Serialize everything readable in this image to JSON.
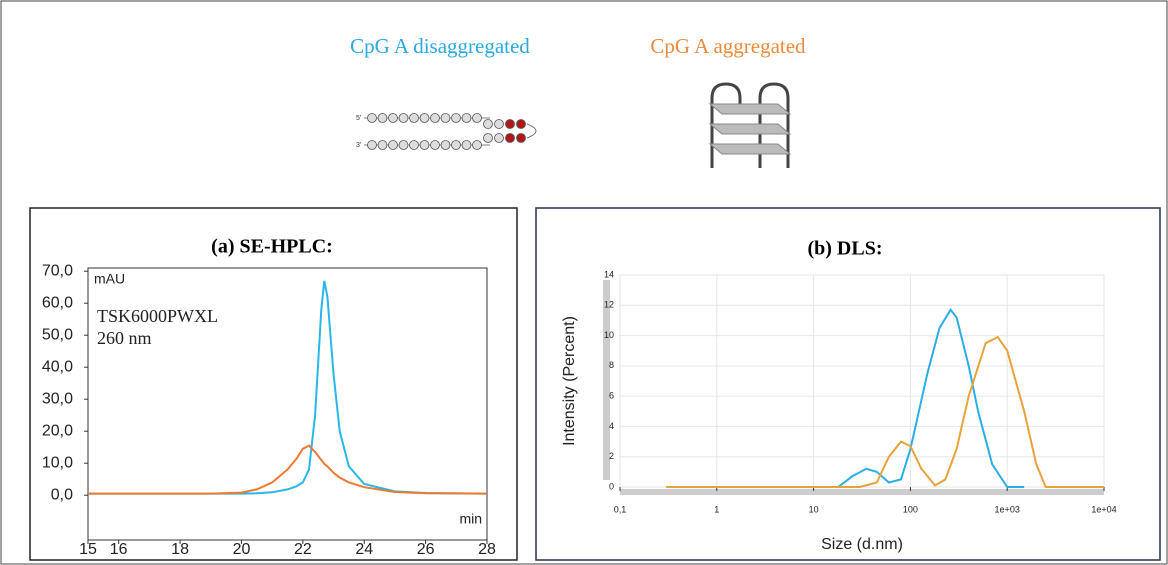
{
  "legend": [
    {
      "name": "CpG A disaggregated",
      "color": "#29a9e0"
    },
    {
      "name": "CpG A aggregated",
      "color": "#ee8a3c"
    }
  ],
  "illustration": {
    "five_prime": "5'",
    "three_prime": "3'"
  },
  "chart_data": [
    {
      "type": "line",
      "title": "(a) SE-HPLC:",
      "annotations": [
        "mAU",
        "min",
        "TSK6000PWXL",
        "260 nm"
      ],
      "xlim": [
        15,
        28
      ],
      "xticks": [
        15,
        16,
        18,
        20,
        22,
        24,
        26,
        28
      ],
      "ylim": [
        -14,
        71
      ],
      "yticks": [
        {
          "value": 0,
          "label": "0,0"
        },
        {
          "value": 10,
          "label": "10,0"
        },
        {
          "value": 20,
          "label": "20,0"
        },
        {
          "value": 30,
          "label": "30,0"
        },
        {
          "value": 40,
          "label": "40,0"
        },
        {
          "value": 50,
          "label": "50,0"
        },
        {
          "value": 60,
          "label": "60,0"
        },
        {
          "value": 70,
          "label": "70,0"
        }
      ],
      "grid": false,
      "log_x": false,
      "series": [
        {
          "color": "#29b6e8",
          "x": [
            15,
            17,
            19,
            20,
            20.5,
            21,
            21.5,
            21.8,
            22,
            22.2,
            22.4,
            22.6,
            22.7,
            22.8,
            23,
            23.2,
            23.5,
            24,
            25,
            26,
            28
          ],
          "values": [
            0.5,
            0.5,
            0.5,
            0.5,
            0.6,
            0.9,
            1.8,
            2.8,
            4,
            8,
            25,
            58,
            67,
            62,
            38,
            20,
            9,
            3.5,
            1.2,
            0.7,
            0.5
          ]
        },
        {
          "color": "#ec7a30",
          "x": [
            15,
            17,
            19,
            20,
            20.5,
            21,
            21.5,
            21.8,
            22,
            22.2,
            22.4,
            22.6,
            22.7,
            22.8,
            23,
            23.2,
            23.5,
            24,
            25,
            26,
            28
          ],
          "values": [
            0.5,
            0.5,
            0.5,
            0.8,
            1.8,
            4,
            8,
            11.5,
            14.5,
            15.5,
            13.5,
            11,
            9.8,
            9,
            7,
            5.5,
            4,
            2.5,
            1,
            0.6,
            0.5
          ]
        }
      ]
    },
    {
      "type": "line",
      "title": "(b) DLS:",
      "x_label": "Size (d.nm)",
      "y_label": "Intensity (Percent)",
      "xlim": [
        0.1,
        10000
      ],
      "xticks": [
        {
          "value": 0.1,
          "label": "0,1"
        },
        1,
        10,
        100,
        {
          "value": 1000,
          "label": "1e+03"
        },
        {
          "value": 10000,
          "label": "1e+04"
        }
      ],
      "ylim": [
        0,
        14
      ],
      "yticks": [
        0,
        2,
        4,
        6,
        8,
        10,
        12,
        14
      ],
      "grid": true,
      "log_x": true,
      "series": [
        {
          "color": "#2aaee6",
          "x": [
            18,
            25,
            35,
            45,
            60,
            80,
            100,
            150,
            200,
            260,
            300,
            400,
            500,
            700,
            1000,
            1500
          ],
          "values": [
            0,
            0.7,
            1.2,
            1.0,
            0.3,
            0.5,
            2.5,
            7.5,
            10.5,
            11.7,
            11.2,
            8,
            5,
            1.5,
            0,
            0
          ]
        },
        {
          "color": "#e9a23b",
          "x": [
            0.3,
            30,
            45,
            60,
            80,
            100,
            130,
            180,
            230,
            300,
            400,
            600,
            800,
            1000,
            1500,
            2000,
            2500,
            10000
          ],
          "values": [
            0,
            0,
            0.3,
            2,
            3,
            2.7,
            1.2,
            0.1,
            0.5,
            2.5,
            6,
            9.5,
            9.9,
            9,
            5,
            1.5,
            0,
            0
          ]
        }
      ]
    }
  ]
}
